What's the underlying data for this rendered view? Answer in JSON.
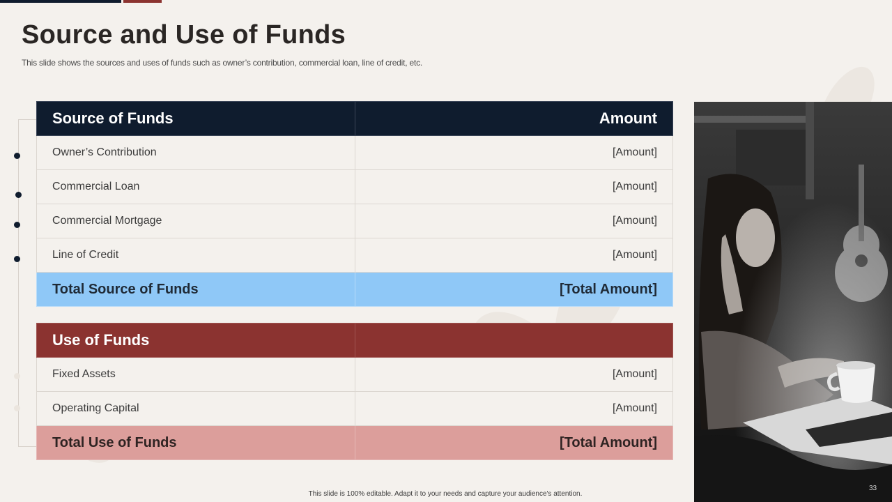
{
  "slide": {
    "title": "Source and Use of Funds",
    "subtitle": "This slide shows the sources and uses of funds such as owner’s contribution, commercial loan, line of credit, etc.",
    "footer": "This slide is 100% editable.  Adapt it to your needs and capture your audience's attention.",
    "page_number": "33"
  },
  "source_table": {
    "header": {
      "label": "Source of Funds",
      "amount": "Amount"
    },
    "rows": [
      {
        "label": "Owner’s Contribution",
        "amount": "[Amount]"
      },
      {
        "label": "Commercial Loan",
        "amount": "[Amount]"
      },
      {
        "label": "Commercial Mortgage",
        "amount": "[Amount]"
      },
      {
        "label": "Line of Credit",
        "amount": "[Amount]"
      }
    ],
    "total": {
      "label": "Total Source of Funds",
      "amount": "[Total Amount]"
    }
  },
  "use_table": {
    "header": {
      "label": "Use of Funds",
      "amount": ""
    },
    "rows": [
      {
        "label": "Fixed Assets",
        "amount": "[Amount]"
      },
      {
        "label": "Operating Capital",
        "amount": "[Amount]"
      }
    ],
    "total": {
      "label": "Total Use of Funds",
      "amount": "[Total Amount]"
    }
  },
  "colors": {
    "navy": "#0f1c2e",
    "maroon": "#8b3330",
    "light_blue": "#8fc8f7",
    "pink": "#dc9e9b",
    "background": "#f4f1ed"
  },
  "photo": {
    "icon": "woman-with-laptop-photo"
  }
}
